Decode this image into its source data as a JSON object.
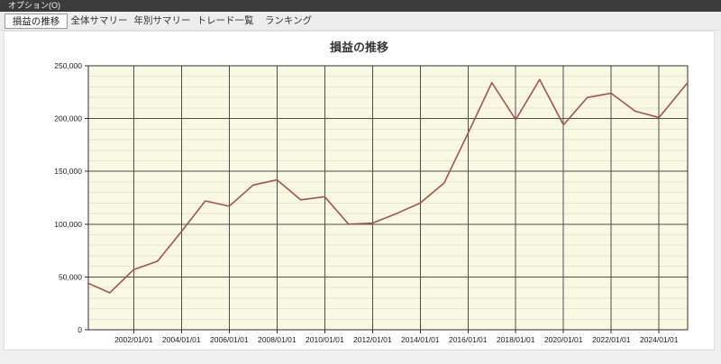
{
  "menu": {
    "items": [
      {
        "label": "オプション(O)"
      }
    ]
  },
  "tabs": [
    {
      "label": "損益の推移",
      "active": true
    },
    {
      "label": "全体サマリー",
      "active": false
    },
    {
      "label": "年別サマリー",
      "active": false
    },
    {
      "label": "トレード一覧",
      "active": false
    },
    {
      "label": "ランキング",
      "active": false
    }
  ],
  "chart_data": {
    "type": "line",
    "title": "損益の推移",
    "xlabel": "",
    "ylabel": "",
    "xlim": [
      2000.1,
      2025.2
    ],
    "ylim": [
      0,
      250000
    ],
    "y_major_step": 50000,
    "y_minor_step": 10000,
    "y_tick_labels": [
      "0",
      "50,000",
      "100,000",
      "150,000",
      "200,000",
      "250,000"
    ],
    "x_ticks": [
      2002,
      2004,
      2006,
      2008,
      2010,
      2012,
      2014,
      2016,
      2018,
      2020,
      2022,
      2024
    ],
    "x_tick_labels": [
      "2002/01/01",
      "2004/01/01",
      "2006/01/01",
      "2008/01/01",
      "2010/01/01",
      "2012/01/01",
      "2014/01/01",
      "2016/01/01",
      "2018/01/01",
      "2020/01/01",
      "2022/01/01",
      "2024/01/01"
    ],
    "grid": {
      "minor_color": "#e8e4cf",
      "major_color": "#4d4d4d",
      "axis_color": "#2f2f2f"
    },
    "plot_bg": "#f9f8e3",
    "legend": "none",
    "series": [
      {
        "name": "損益",
        "color": "#a1544e",
        "x": [
          2000.1,
          2001,
          2002,
          2003,
          2004,
          2005,
          2006,
          2007,
          2008,
          2009,
          2010,
          2011,
          2012,
          2013,
          2014,
          2015,
          2016,
          2017,
          2018,
          2019,
          2020,
          2021,
          2022,
          2023,
          2024,
          2025.2
        ],
        "values": [
          44000,
          35000,
          57000,
          65000,
          93000,
          122000,
          117000,
          137000,
          142000,
          123000,
          126000,
          100000,
          101000,
          110000,
          120000,
          139000,
          186000,
          234000,
          199000,
          237000,
          194000,
          220000,
          224000,
          207000,
          201000,
          234000
        ]
      }
    ]
  }
}
